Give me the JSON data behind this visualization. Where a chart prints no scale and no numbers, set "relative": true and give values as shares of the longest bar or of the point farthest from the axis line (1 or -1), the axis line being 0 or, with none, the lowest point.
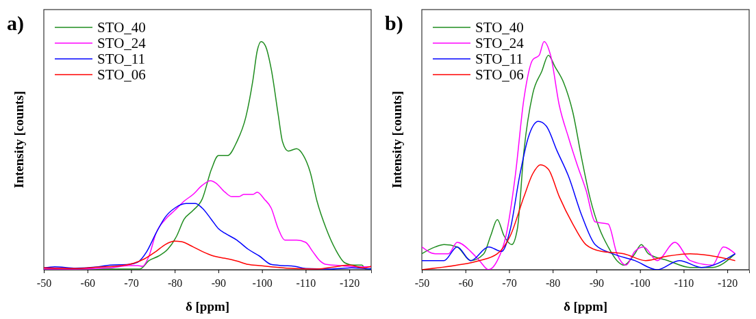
{
  "chart_data": [
    {
      "type": "line",
      "title": "a)",
      "xlabel": "δ [ppm]",
      "ylabel": "Intensity [counts]",
      "relative": true,
      "xlim": [
        -50,
        -125
      ],
      "xticks": [
        -50,
        -60,
        -70,
        -80,
        -90,
        -100,
        -110,
        -120
      ],
      "legend": "top left",
      "grid": false,
      "marker": "none",
      "line_style": "solid",
      "tick_labels": "x",
      "series": [
        {
          "name": "STO_40",
          "color": "#1e8c1e",
          "x": [
            -50,
            -57.3,
            -65.2,
            -70.5,
            -72,
            -74.1,
            -76.3,
            -78.4,
            -80.5,
            -82.1,
            -84.2,
            -86.3,
            -88.4,
            -90,
            -92.1,
            -94.2,
            -96.3,
            -97.9,
            -98.9,
            -99.8,
            -100.8,
            -102.1,
            -103.7,
            -104.7,
            -106,
            -107.9,
            -109.5,
            -111,
            -112.6,
            -114.7,
            -116.8,
            -119,
            -121.1,
            -122.9,
            -123.7,
            -125
          ],
          "values": [
            0.003,
            0.005,
            0.003,
            0.003,
            0.003,
            0.04,
            0.06,
            0.09,
            0.15,
            0.22,
            0.26,
            0.31,
            0.44,
            0.5,
            0.5,
            0.56,
            0.67,
            0.83,
            0.96,
            1,
            0.98,
            0.88,
            0.68,
            0.56,
            0.52,
            0.53,
            0.5,
            0.43,
            0.3,
            0.18,
            0.09,
            0.03,
            0.02,
            0.02,
            0.003,
            0.005
          ]
        },
        {
          "name": "STO_24",
          "color": "#ff00ff",
          "x": [
            -50,
            -57.3,
            -65.2,
            -69.4,
            -71.5,
            -72.6,
            -74.1,
            -75.7,
            -77.8,
            -80,
            -82.1,
            -84.2,
            -86.3,
            -88.2,
            -89.4,
            -91.5,
            -93.1,
            -94.7,
            -95.8,
            -97.9,
            -98.9,
            -100.5,
            -102.1,
            -103.7,
            -105.2,
            -106.3,
            -107.9,
            -110,
            -111.6,
            -113.2,
            -114.7,
            -117.9,
            -121.1,
            -125
          ],
          "values": [
            0.003,
            0.003,
            0.008,
            0.018,
            0.018,
            0.015,
            0.06,
            0.16,
            0.22,
            0.26,
            0.3,
            0.33,
            0.37,
            0.39,
            0.38,
            0.34,
            0.32,
            0.32,
            0.33,
            0.33,
            0.34,
            0.31,
            0.27,
            0.18,
            0.13,
            0.13,
            0.13,
            0.12,
            0.08,
            0.04,
            0.023,
            0.018,
            0.013,
            0.013
          ]
        },
        {
          "name": "STO_11",
          "color": "#0000ff",
          "x": [
            -50,
            -52.5,
            -57.3,
            -62.5,
            -65.2,
            -69.4,
            -71.5,
            -73.6,
            -75.7,
            -77.8,
            -80,
            -82.6,
            -84.7,
            -86.3,
            -88.4,
            -90,
            -91.5,
            -94.2,
            -96.8,
            -99.4,
            -102.1,
            -104.7,
            -107.4,
            -110,
            -115.3,
            -120.5,
            -125
          ],
          "values": [
            0.008,
            0.013,
            0.007,
            0.013,
            0.02,
            0.023,
            0.033,
            0.08,
            0.16,
            0.23,
            0.27,
            0.29,
            0.29,
            0.27,
            0.22,
            0.18,
            0.16,
            0.13,
            0.09,
            0.06,
            0.023,
            0.018,
            0.015,
            0.005,
            0.003,
            0.008,
            0.003
          ]
        },
        {
          "name": "STO_06",
          "color": "#ff0000",
          "x": [
            -50,
            -57.3,
            -62.5,
            -67.8,
            -70.5,
            -73.1,
            -75.7,
            -77.8,
            -80,
            -81.5,
            -84.2,
            -86.3,
            -88.9,
            -91.5,
            -94.2,
            -96.8,
            -99.4,
            -102.1,
            -107.4,
            -112.6,
            -116.8,
            -120,
            -123.2,
            -125
          ],
          "values": [
            0.008,
            0.005,
            0.011,
            0.018,
            0.028,
            0.048,
            0.08,
            0.11,
            0.125,
            0.123,
            0.1,
            0.08,
            0.06,
            0.05,
            0.038,
            0.023,
            0.018,
            0.013,
            0.005,
            0.003,
            0.013,
            0.02,
            0.008,
            0.015
          ]
        }
      ]
    },
    {
      "type": "line",
      "title": "b)",
      "xlabel": "δ [ppm]",
      "ylabel": "Intensity [counts]",
      "relative": true,
      "xlim": [
        -50,
        -125
      ],
      "xticks": [
        -50,
        -60,
        -70,
        -80,
        -90,
        -100,
        -110,
        -120
      ],
      "legend": "top left",
      "grid": false,
      "marker": "none",
      "line_style": "solid",
      "tick_labels": "x",
      "series": [
        {
          "name": "STO_40",
          "color": "#1e8c1e",
          "x": [
            -50,
            -53.1,
            -55.1,
            -58.1,
            -61.2,
            -64.2,
            -65.8,
            -67.3,
            -68.8,
            -70.6,
            -71.9,
            -73.4,
            -75.4,
            -77.5,
            -79,
            -80.5,
            -82.5,
            -84.6,
            -86.6,
            -88.6,
            -90.7,
            -92.7,
            -94.7,
            -96.3,
            -98.8,
            -100.3,
            -101.9,
            -106.4,
            -111.5,
            -116.6,
            -121.8
          ],
          "values": [
            0.07,
            0.1,
            0.11,
            0.1,
            0.04,
            0.07,
            0.15,
            0.22,
            0.15,
            0.11,
            0.18,
            0.52,
            0.77,
            0.87,
            0.94,
            0.89,
            0.82,
            0.69,
            0.49,
            0.31,
            0.18,
            0.1,
            0.04,
            0.02,
            0.07,
            0.11,
            0.07,
            0.04,
            0.01,
            0.01,
            0.07
          ]
        },
        {
          "name": "STO_24",
          "color": "#ff00ff",
          "x": [
            -50,
            -53.1,
            -56.1,
            -58.1,
            -61.2,
            -63.2,
            -65.3,
            -67.3,
            -69.3,
            -71.4,
            -73.4,
            -75.4,
            -76.9,
            -78,
            -79.5,
            -81.5,
            -83.6,
            -85.6,
            -87.6,
            -89.7,
            -92.7,
            -94.7,
            -96.8,
            -98.8,
            -100.8,
            -103.9,
            -108,
            -111.5,
            -116.6,
            -119.1,
            -121.8
          ],
          "values": [
            0.1,
            0.07,
            0.07,
            0.12,
            0.08,
            0.04,
            0,
            0.04,
            0.15,
            0.41,
            0.75,
            0.92,
            0.94,
            1,
            0.94,
            0.72,
            0.58,
            0.46,
            0.35,
            0.21,
            0.2,
            0.07,
            0.02,
            0.08,
            0.1,
            0.04,
            0.12,
            0.04,
            0.02,
            0.1,
            0.07
          ]
        },
        {
          "name": "STO_11",
          "color": "#0000ff",
          "x": [
            -50,
            -55.1,
            -58.1,
            -61.2,
            -65.3,
            -68.3,
            -70.3,
            -72.4,
            -74.4,
            -76.7,
            -78.5,
            -81,
            -83.6,
            -86.6,
            -89.7,
            -93.7,
            -98.8,
            -103.9,
            -109,
            -114.1,
            -121.8
          ],
          "values": [
            0.04,
            0.04,
            0.1,
            0.04,
            0.1,
            0.08,
            0.18,
            0.41,
            0.58,
            0.65,
            0.63,
            0.52,
            0.41,
            0.24,
            0.11,
            0.07,
            0.04,
            0,
            0.04,
            0.01,
            0.07
          ]
        },
        {
          "name": "STO_06",
          "color": "#ff0000",
          "x": [
            -50,
            -58.1,
            -63.2,
            -67.3,
            -70.3,
            -73.4,
            -75.4,
            -77.2,
            -79,
            -81.5,
            -84.6,
            -87.6,
            -91.2,
            -96.3,
            -101.3,
            -106.4,
            -111.5,
            -116.6,
            -121.8
          ],
          "values": [
            0,
            0.02,
            0.04,
            0.07,
            0.15,
            0.32,
            0.42,
            0.46,
            0.44,
            0.32,
            0.2,
            0.11,
            0.08,
            0.07,
            0.04,
            0.06,
            0.07,
            0.06,
            0.04
          ]
        }
      ]
    }
  ]
}
